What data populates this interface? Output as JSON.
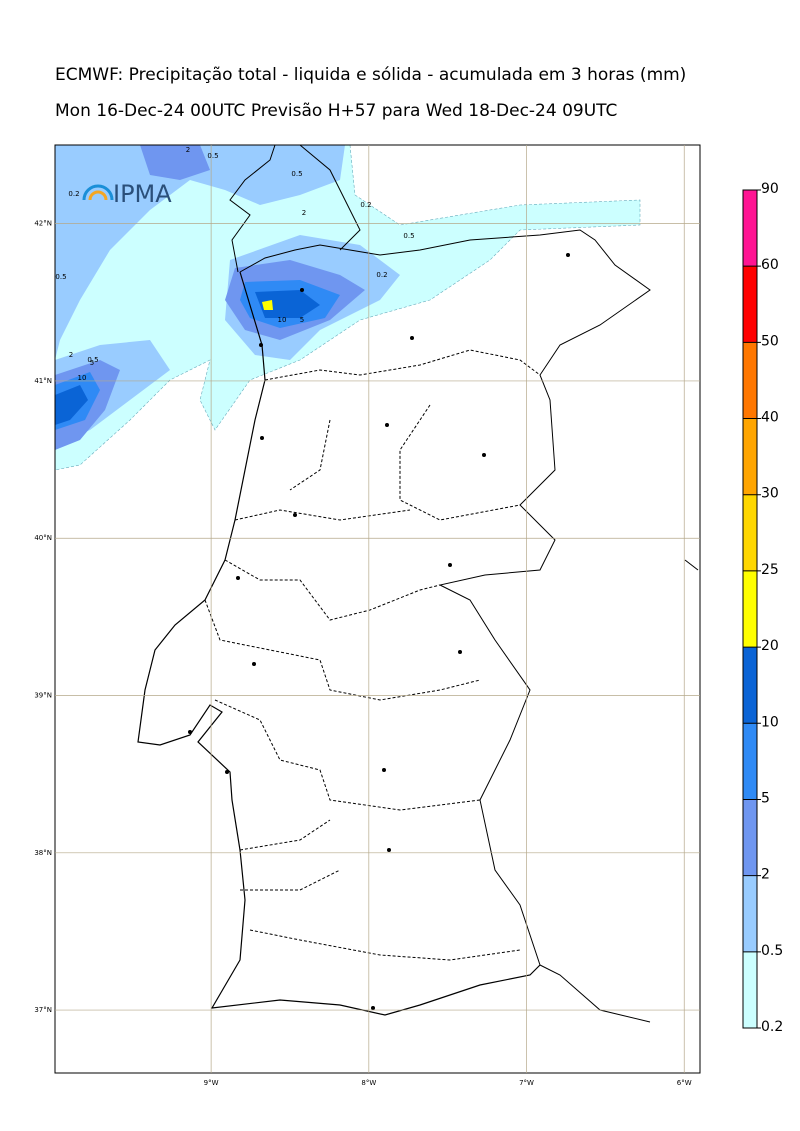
{
  "header": {
    "title": "ECMWF: Precipitação total - liquida e sólida - acumulada em 3 horas (mm)",
    "subtitle": "Mon 16-Dec-24 00UTC Previsão H+57 para Wed 18-Dec-24 09UTC"
  },
  "logo": "IPMA",
  "map": {
    "lon_range": [
      -9.99,
      -5.9
    ],
    "lat_range": [
      36.6,
      42.5
    ],
    "lon_ticks": [
      {
        "value": -9,
        "label": "9°W"
      },
      {
        "value": -8,
        "label": "8°W"
      },
      {
        "value": -7,
        "label": "7°W"
      },
      {
        "value": -6,
        "label": "6°W"
      }
    ],
    "lat_ticks": [
      {
        "value": 42,
        "label": "42°N"
      },
      {
        "value": 41,
        "label": "41°N"
      },
      {
        "value": 40,
        "label": "40°N"
      },
      {
        "value": 39,
        "label": "39°N"
      },
      {
        "value": 38,
        "label": "38°N"
      },
      {
        "value": 37,
        "label": "37°N"
      }
    ],
    "contour_labels": [
      "2",
      "0.5",
      "0.5",
      "0.2",
      "2",
      "0.2",
      "0.5",
      "0.5",
      "10",
      "5",
      "0.2",
      "0.5",
      "2",
      "5",
      "10"
    ]
  },
  "colorbar": {
    "levels": [
      0.2,
      0.5,
      2,
      5,
      10,
      20,
      25,
      30,
      40,
      50,
      60,
      90
    ],
    "colors": [
      "#ccffff",
      "#99ccff",
      "#6f96f0",
      "#2f8af5",
      "#0a64d6",
      "#ffff00",
      "#ffd700",
      "#ffa500",
      "#ff7700",
      "#ff0000",
      "#ff1493"
    ]
  }
}
